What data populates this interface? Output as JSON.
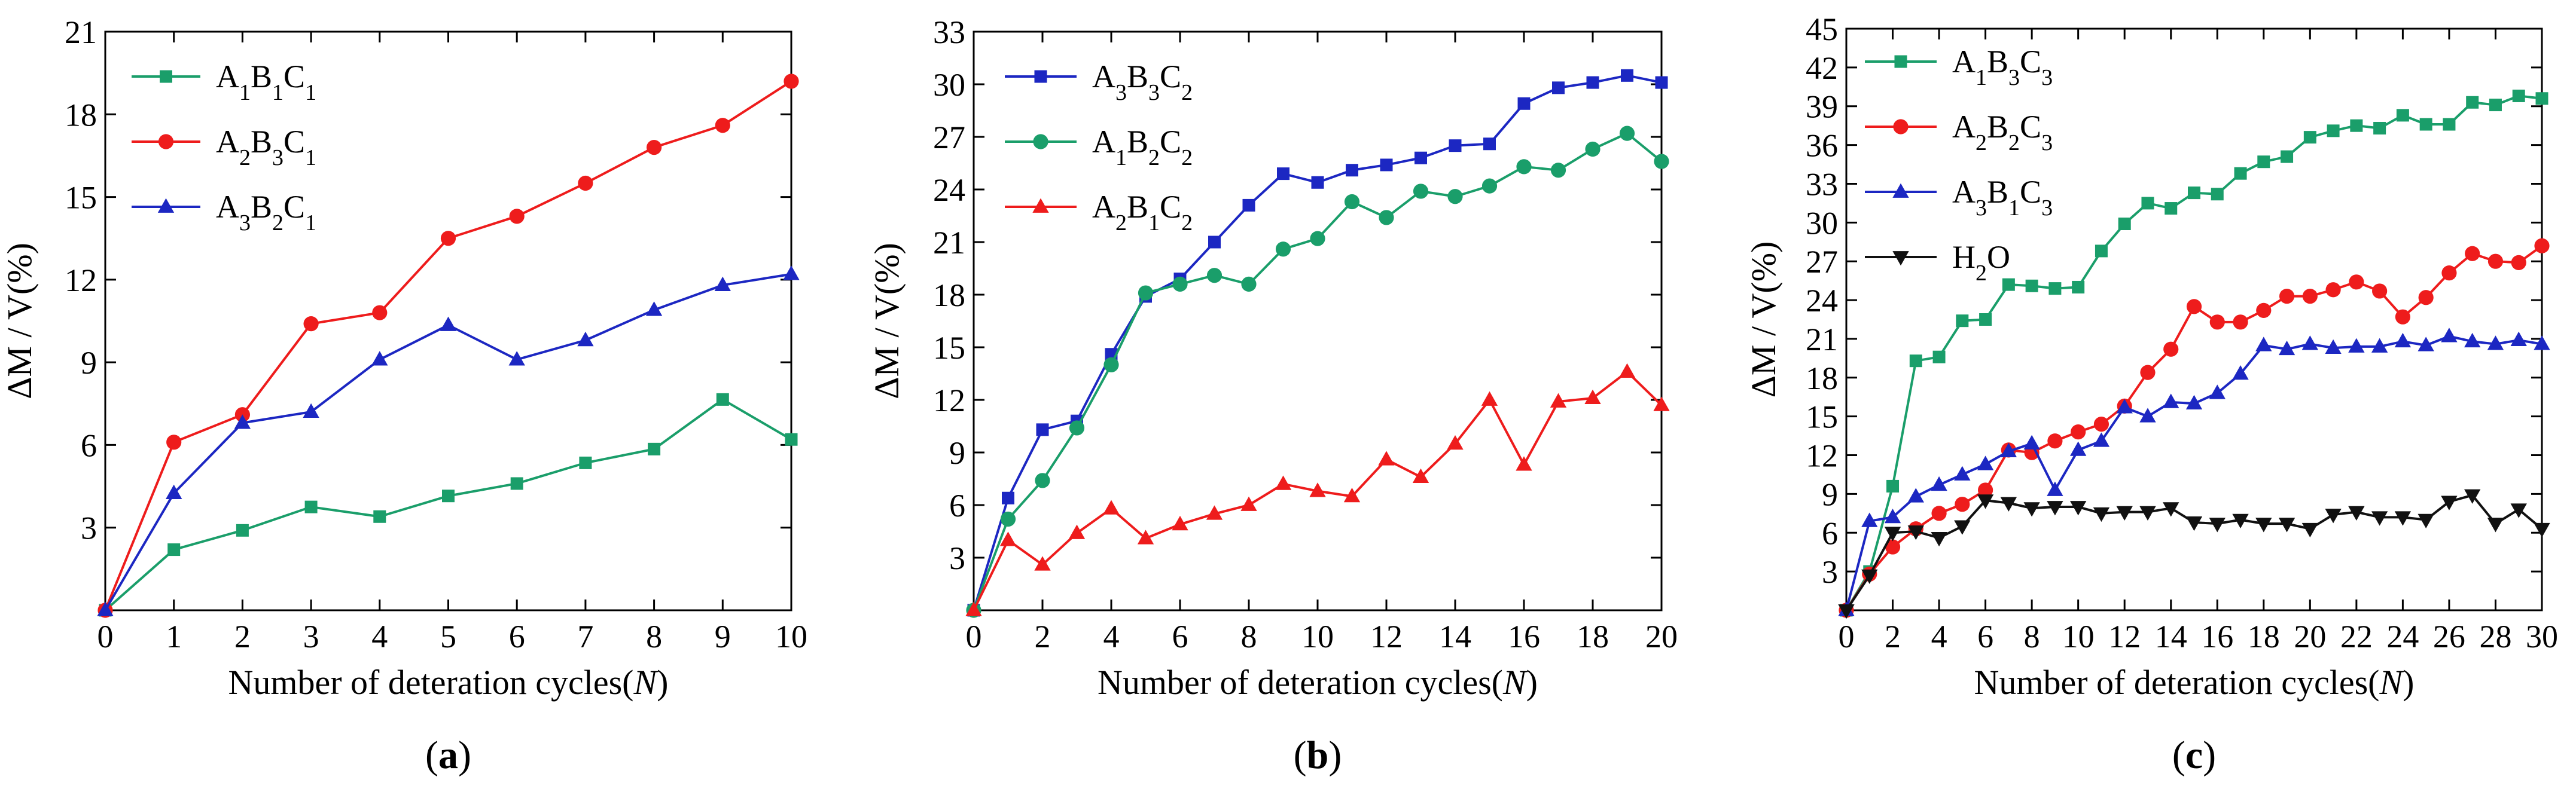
{
  "colors": {
    "green": "#1a9e6a",
    "red": "#ee1c1c",
    "blue": "#1c27c2",
    "black": "#111111"
  },
  "chart_data": [
    {
      "type": "line",
      "panel_label": "a",
      "xlabel": "Number of deteration cycles(N)",
      "ylabel": "ΔM / V(%)",
      "xlim": [
        0,
        10
      ],
      "ylim": [
        0,
        21
      ],
      "xticks": [
        0,
        1,
        2,
        3,
        4,
        5,
        6,
        7,
        8,
        9,
        10
      ],
      "yticks": [
        3,
        6,
        9,
        12,
        15,
        18,
        21
      ],
      "legend_position": "top-left",
      "grid": false,
      "series": [
        {
          "name": "A1B1C1",
          "name_parts": [
            [
              "A",
              "n"
            ],
            [
              "1",
              "s"
            ],
            [
              "B",
              "n"
            ],
            [
              "1",
              "s"
            ],
            [
              "C",
              "n"
            ],
            [
              "1",
              "s"
            ]
          ],
          "color": "#1a9e6a",
          "marker": "square",
          "x": [
            0,
            1,
            2,
            3,
            4,
            5,
            6,
            7,
            8,
            9,
            10
          ],
          "values": [
            0,
            2.2,
            2.9,
            3.75,
            3.4,
            4.15,
            4.6,
            5.35,
            5.85,
            7.65,
            6.2
          ]
        },
        {
          "name": "A2B3C1",
          "name_parts": [
            [
              "A",
              "n"
            ],
            [
              "2",
              "s"
            ],
            [
              "B",
              "n"
            ],
            [
              "3",
              "s"
            ],
            [
              "C",
              "n"
            ],
            [
              "1",
              "s"
            ]
          ],
          "color": "#ee1c1c",
          "marker": "circle",
          "x": [
            0,
            1,
            2,
            3,
            4,
            5,
            6,
            7,
            8,
            9,
            10
          ],
          "values": [
            0,
            6.1,
            7.1,
            10.4,
            10.8,
            13.5,
            14.3,
            15.5,
            16.8,
            17.6,
            19.2
          ]
        },
        {
          "name": "A3B2C1",
          "name_parts": [
            [
              "A",
              "n"
            ],
            [
              "3",
              "s"
            ],
            [
              "B",
              "n"
            ],
            [
              "2",
              "s"
            ],
            [
              "C",
              "n"
            ],
            [
              "1",
              "s"
            ]
          ],
          "color": "#1c27c2",
          "marker": "triangle",
          "x": [
            0,
            1,
            2,
            3,
            4,
            5,
            6,
            7,
            8,
            9,
            10
          ],
          "values": [
            0,
            4.25,
            6.8,
            7.2,
            9.1,
            10.35,
            9.1,
            9.8,
            10.9,
            11.8,
            12.2
          ]
        }
      ]
    },
    {
      "type": "line",
      "panel_label": "b",
      "xlabel": "Number of deteration cycles(N)",
      "ylabel": "ΔM / V(%)",
      "xlim": [
        0,
        20
      ],
      "ylim": [
        0,
        33
      ],
      "xticks": [
        0,
        2,
        4,
        6,
        8,
        10,
        12,
        14,
        16,
        18,
        20
      ],
      "yticks": [
        3,
        6,
        9,
        12,
        15,
        18,
        21,
        24,
        27,
        30,
        33
      ],
      "legend_position": "top-left",
      "grid": false,
      "series": [
        {
          "name": "A3B3C2",
          "name_parts": [
            [
              "A",
              "n"
            ],
            [
              "3",
              "s"
            ],
            [
              "B",
              "n"
            ],
            [
              "3",
              "s"
            ],
            [
              "C",
              "n"
            ],
            [
              "2",
              "s"
            ]
          ],
          "color": "#1c27c2",
          "marker": "square",
          "x": [
            0,
            1,
            2,
            3,
            4,
            5,
            6,
            7,
            8,
            9,
            10,
            11,
            12,
            13,
            14,
            15,
            16,
            17,
            18,
            19,
            20
          ],
          "values": [
            0,
            6.4,
            10.3,
            10.8,
            14.6,
            17.9,
            18.9,
            21.0,
            23.1,
            24.9,
            24.4,
            25.1,
            25.4,
            25.8,
            26.5,
            26.6,
            28.9,
            29.8,
            30.1,
            30.5,
            30.1
          ]
        },
        {
          "name": "A1B2C2",
          "name_parts": [
            [
              "A",
              "n"
            ],
            [
              "1",
              "s"
            ],
            [
              "B",
              "n"
            ],
            [
              "2",
              "s"
            ],
            [
              "C",
              "n"
            ],
            [
              "2",
              "s"
            ]
          ],
          "color": "#1a9e6a",
          "marker": "circle",
          "x": [
            0,
            1,
            2,
            3,
            4,
            5,
            6,
            7,
            8,
            9,
            10,
            11,
            12,
            13,
            14,
            15,
            16,
            17,
            18,
            19,
            20
          ],
          "values": [
            0,
            5.2,
            7.4,
            10.4,
            14.0,
            18.1,
            18.6,
            19.1,
            18.6,
            20.6,
            21.2,
            23.3,
            22.4,
            23.9,
            23.6,
            24.2,
            25.3,
            25.1,
            26.3,
            27.2,
            25.6
          ]
        },
        {
          "name": "A2B1C2",
          "name_parts": [
            [
              "A",
              "n"
            ],
            [
              "2",
              "s"
            ],
            [
              "B",
              "n"
            ],
            [
              "1",
              "s"
            ],
            [
              "C",
              "n"
            ],
            [
              "2",
              "s"
            ]
          ],
          "color": "#ee1c1c",
          "marker": "triangle",
          "x": [
            0,
            1,
            2,
            3,
            4,
            5,
            6,
            7,
            8,
            9,
            10,
            11,
            12,
            13,
            14,
            15,
            16,
            17,
            18,
            19,
            20
          ],
          "values": [
            0,
            4.0,
            2.6,
            4.4,
            5.8,
            4.1,
            4.9,
            5.5,
            6.0,
            7.2,
            6.8,
            6.5,
            8.6,
            7.6,
            9.5,
            12.0,
            8.3,
            11.9,
            12.1,
            13.6,
            11.7
          ]
        }
      ]
    },
    {
      "type": "line",
      "panel_label": "c",
      "xlabel": "Number of deteration cycles(N)",
      "ylabel": "ΔM / V(%)",
      "xlim": [
        0,
        30
      ],
      "ylim": [
        0,
        45
      ],
      "xticks": [
        0,
        2,
        4,
        6,
        8,
        10,
        12,
        14,
        16,
        18,
        20,
        22,
        24,
        26,
        28,
        30
      ],
      "yticks": [
        3,
        6,
        9,
        12,
        15,
        18,
        21,
        24,
        27,
        30,
        33,
        36,
        39,
        42,
        45
      ],
      "legend_position": "top-left",
      "grid": false,
      "series": [
        {
          "name": "A1B3C3",
          "name_parts": [
            [
              "A",
              "n"
            ],
            [
              "1",
              "s"
            ],
            [
              "B",
              "n"
            ],
            [
              "3",
              "s"
            ],
            [
              "C",
              "n"
            ],
            [
              "3",
              "s"
            ]
          ],
          "color": "#1a9e6a",
          "marker": "square",
          "x": [
            0,
            1,
            2,
            3,
            4,
            5,
            6,
            7,
            8,
            9,
            10,
            11,
            12,
            13,
            14,
            15,
            16,
            17,
            18,
            19,
            20,
            21,
            22,
            23,
            24,
            25,
            26,
            27,
            28,
            29,
            30
          ],
          "values": [
            0,
            3.0,
            9.6,
            19.3,
            19.6,
            22.4,
            22.5,
            25.2,
            25.1,
            24.9,
            25.0,
            27.8,
            29.9,
            31.5,
            31.1,
            32.3,
            32.2,
            33.8,
            34.7,
            35.1,
            36.6,
            37.1,
            37.5,
            37.3,
            38.3,
            37.6,
            37.6,
            39.3,
            39.1,
            39.8,
            39.6
          ]
        },
        {
          "name": "A2B2C3",
          "name_parts": [
            [
              "A",
              "n"
            ],
            [
              "2",
              "s"
            ],
            [
              "B",
              "n"
            ],
            [
              "2",
              "s"
            ],
            [
              "C",
              "n"
            ],
            [
              "3",
              "s"
            ]
          ],
          "color": "#ee1c1c",
          "marker": "circle",
          "x": [
            0,
            1,
            2,
            3,
            4,
            5,
            6,
            7,
            8,
            9,
            10,
            11,
            12,
            13,
            14,
            15,
            16,
            17,
            18,
            19,
            20,
            21,
            22,
            23,
            24,
            25,
            26,
            27,
            28,
            29,
            30
          ],
          "values": [
            0,
            2.8,
            4.9,
            6.3,
            7.5,
            8.2,
            9.3,
            12.4,
            12.2,
            13.1,
            13.8,
            14.4,
            15.8,
            18.4,
            20.2,
            23.5,
            22.3,
            22.3,
            23.2,
            24.3,
            24.3,
            24.8,
            25.4,
            24.7,
            22.7,
            24.2,
            26.1,
            27.6,
            27.0,
            26.9,
            28.2
          ]
        },
        {
          "name": "A3B1C3",
          "name_parts": [
            [
              "A",
              "n"
            ],
            [
              "3",
              "s"
            ],
            [
              "B",
              "n"
            ],
            [
              "1",
              "s"
            ],
            [
              "C",
              "n"
            ],
            [
              "3",
              "s"
            ]
          ],
          "color": "#1c27c2",
          "marker": "triangle",
          "x": [
            0,
            1,
            2,
            3,
            4,
            5,
            6,
            7,
            8,
            9,
            10,
            11,
            12,
            13,
            14,
            15,
            16,
            17,
            18,
            19,
            20,
            21,
            22,
            23,
            24,
            25,
            26,
            27,
            28,
            29,
            30
          ],
          "values": [
            0,
            6.9,
            7.2,
            8.8,
            9.7,
            10.5,
            11.3,
            12.3,
            12.9,
            9.3,
            12.4,
            13.1,
            15.7,
            15.0,
            16.1,
            16.0,
            16.8,
            18.3,
            20.5,
            20.2,
            20.6,
            20.3,
            20.4,
            20.4,
            20.8,
            20.5,
            21.2,
            20.8,
            20.6,
            20.9,
            20.6
          ]
        },
        {
          "name": "H2O",
          "name_parts": [
            [
              "H",
              "n"
            ],
            [
              "2",
              "s"
            ],
            [
              "O",
              "n"
            ]
          ],
          "color": "#111111",
          "marker": "triangle-down",
          "x": [
            0,
            1,
            2,
            3,
            4,
            5,
            6,
            7,
            8,
            9,
            10,
            11,
            12,
            13,
            14,
            15,
            16,
            17,
            18,
            19,
            20,
            21,
            22,
            23,
            24,
            25,
            26,
            27,
            28,
            29,
            30
          ],
          "values": [
            0,
            2.7,
            6.0,
            6.1,
            5.6,
            6.5,
            8.5,
            8.3,
            7.9,
            8.0,
            8.0,
            7.5,
            7.6,
            7.6,
            7.9,
            6.8,
            6.7,
            7.0,
            6.7,
            6.7,
            6.3,
            7.4,
            7.6,
            7.2,
            7.2,
            7.0,
            8.4,
            8.9,
            6.7,
            7.8,
            6.3
          ]
        }
      ]
    }
  ]
}
